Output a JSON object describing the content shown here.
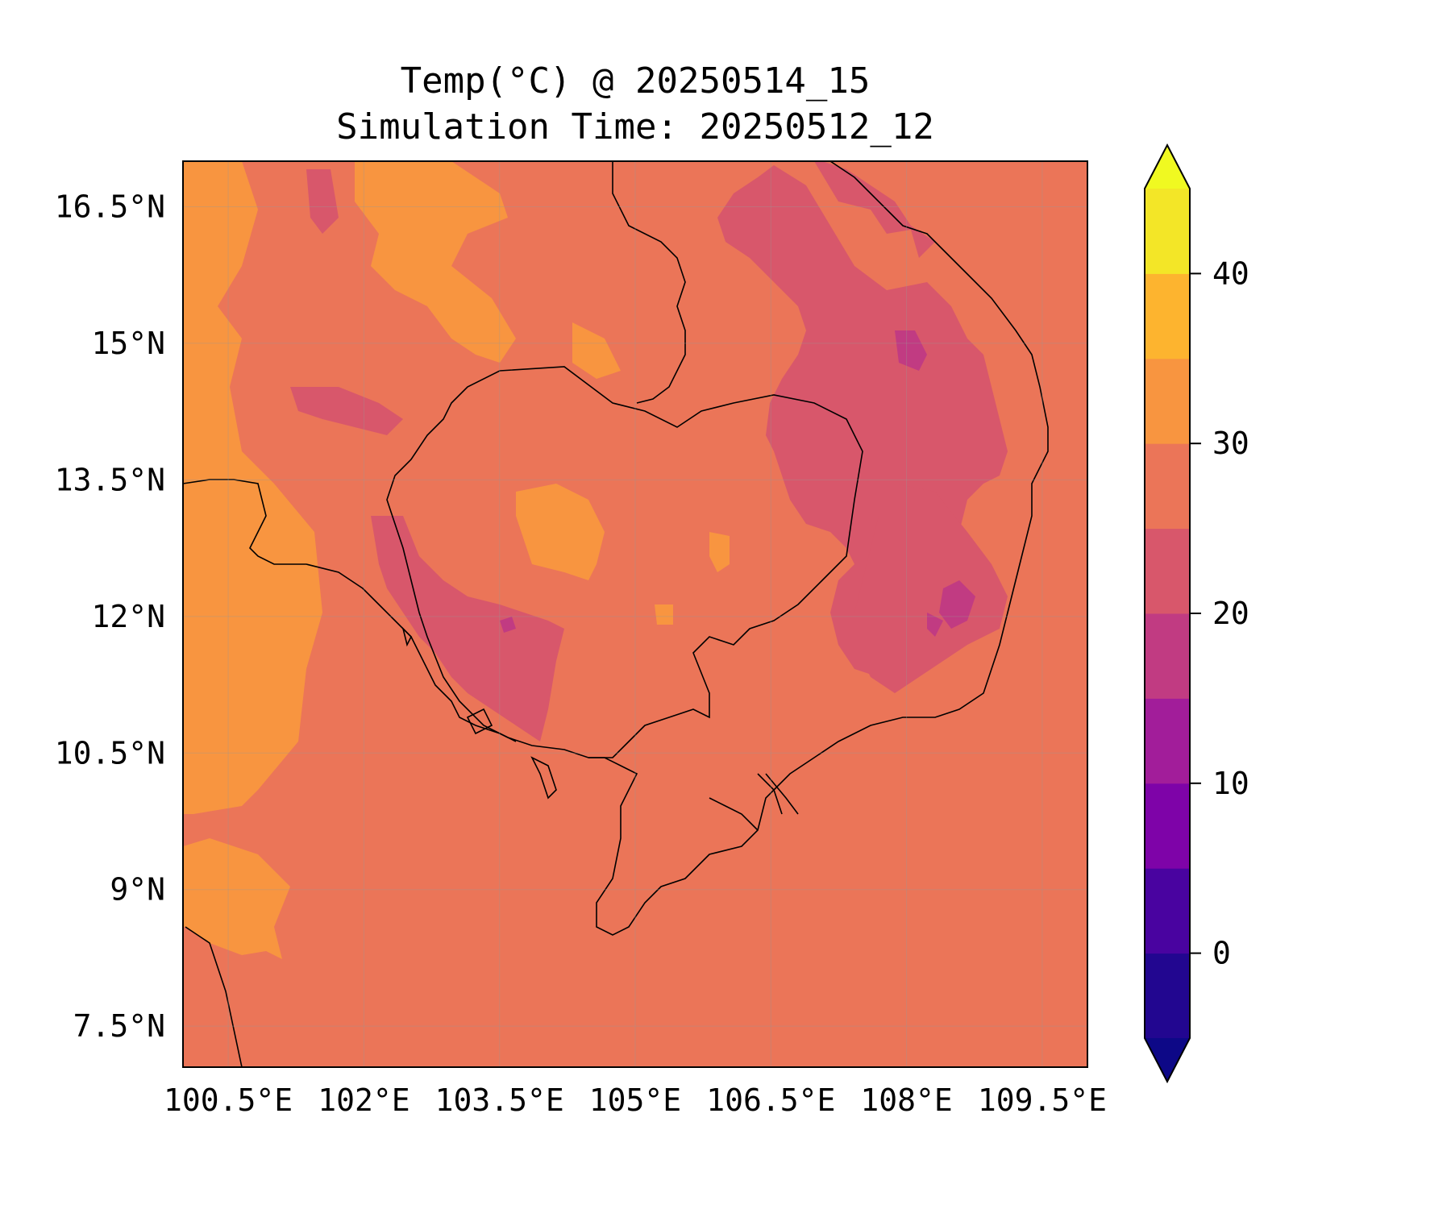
{
  "title": {
    "line1": "Temp(°C) @ 20250514_15",
    "line2": "Simulation Time: 20250512_12"
  },
  "map": {
    "region": "Cambodia and surroundings",
    "lon_range": [
      100.0,
      110.0
    ],
    "lat_range": [
      7.05,
      17.0
    ],
    "grid": true,
    "background_color": "#eb7558",
    "coastline_color": "#000000"
  },
  "x_ticks": [
    {
      "value": 100.5,
      "label": "100.5°E"
    },
    {
      "value": 102.0,
      "label": "102°E"
    },
    {
      "value": 103.5,
      "label": "103.5°E"
    },
    {
      "value": 105.0,
      "label": "105°E"
    },
    {
      "value": 106.5,
      "label": "106.5°E"
    },
    {
      "value": 108.0,
      "label": "108°E"
    },
    {
      "value": 109.5,
      "label": "109.5°E"
    }
  ],
  "y_ticks": [
    {
      "value": 16.5,
      "label": "16.5°N"
    },
    {
      "value": 15.0,
      "label": "15°N"
    },
    {
      "value": 13.5,
      "label": "13.5°N"
    },
    {
      "value": 12.0,
      "label": "12°N"
    },
    {
      "value": 10.5,
      "label": "10.5°N"
    },
    {
      "value": 9.0,
      "label": "9°N"
    },
    {
      "value": 7.5,
      "label": "7.5°N"
    }
  ],
  "colorbar": {
    "levels": [
      -5,
      0,
      5,
      10,
      15,
      20,
      25,
      30,
      35,
      40,
      45
    ],
    "colors": [
      "#220690",
      "#4903a0",
      "#7e03a8",
      "#a21d9a",
      "#c13b82",
      "#d8576b",
      "#eb7558",
      "#f89540",
      "#fdb42f",
      "#f3e627"
    ],
    "under_color": "#0d0887",
    "over_color": "#f0f921",
    "extend": "both",
    "tick_values": [
      0,
      10,
      20,
      30,
      40
    ],
    "tick_labels": [
      "0",
      "10",
      "20",
      "30",
      "40"
    ]
  }
}
